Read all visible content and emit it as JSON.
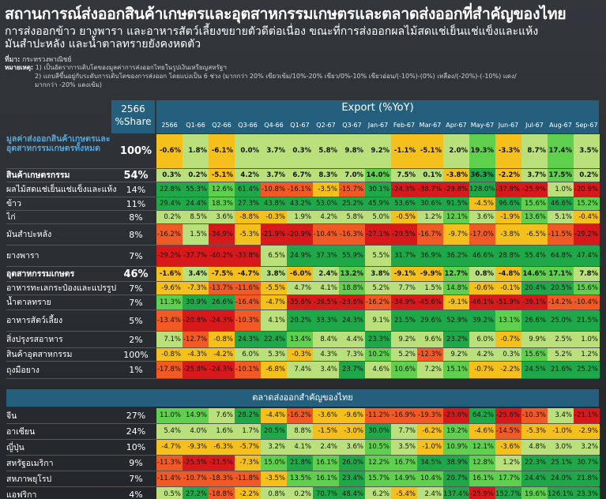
{
  "title": "สถานการณ์ส่งออกสินค้าเกษตรและอุตสาหกรรมเกษตรและตลาดส่งออกที่สำคัญของไทย",
  "subtitle_line1": "การส่งออกข้าว ยางพารา และอาหารสัตว์เลี้ยงขยายตัวดีต่อเนื่อง ขณะที่การส่งออกผลไม้สดแช่เย็นแช่แข็งและแห้ง",
  "subtitle_line2": "มันสำปะหลัง และน้ำตาลทรายยังคงหดตัว",
  "source_label": "ที่มา:",
  "source_text": "กระทรวงพาณิชย์",
  "note_label": "หมายเหตุ:",
  "notes": [
    "1) เป็นอัตราการเติบโตของมูลค่าการส่งออกไทยในรูปเงินเหรียญสหรัฐฯ",
    "2) แถบสีขึ้นอยู่กับระดับการเติบโตของการส่งออก โดยแบ่งเป็น 6 ช่วง (มากกว่า 20% เขียวเข้ม/10%-20% เขียว/0%-10% เขียวอ่อน/(-10%)-(0%) เหลือง/(-20%)-(-10%) แดง/",
    "มากกว่า -20% แดงเข้ม)"
  ],
  "share_header_year": "2566",
  "share_header_label": "%Share",
  "export_header": "Export (%YoY)",
  "columns": [
    "2566",
    "Q1-66",
    "Q2-66",
    "Q3-66",
    "Q4-66",
    "Q1-67",
    "Q2-67",
    "Q3-67",
    "Jan-67",
    "Feb-67",
    "Mar-67",
    "Apr-67",
    "May-67",
    "Jun-67",
    "Jul-67",
    "Aug-67",
    "Sep-67"
  ],
  "section2_title": "ตลาดส่งออกสำคัญของไทย",
  "colors": {
    "dark_green": "#1fa84a",
    "green": "#5fcf4e",
    "light_green": "#b9e07a",
    "yellow": "#f5bf1c",
    "red": "#f15a24",
    "dark_red": "#d7191c",
    "header_blue": "#245f7d"
  },
  "rows": [
    {
      "label": "มูลค่าส่งออกสินค้าเกษตรและอุตสาหกรรมเกษตรทั้งหมด",
      "share": "100%",
      "bold": true,
      "values": [
        "-0.6%",
        "1.8%",
        "-6.1%",
        "0.0%",
        "3.7%",
        "0.3%",
        "5.8%",
        "9.8%",
        "9.2%",
        "-1.1%",
        "-5.1%",
        "2.0%",
        "19.3%",
        "-3.3%",
        "8.7%",
        "17.4%",
        "3.5%"
      ]
    },
    {
      "label": "สินค้าเกษตรกรรม",
      "share": "54%",
      "bold": true,
      "values": [
        "0.3%",
        "0.2%",
        "-5.1%",
        "4.2%",
        "3.7%",
        "6.7%",
        "8.3%",
        "7.0%",
        "14.0%",
        "7.5%",
        "0.1%",
        "-3.8%",
        "36.3%",
        "-2.2%",
        "3.7%",
        "17.5%",
        "0.2%"
      ]
    },
    {
      "label": "ผลไม้สดแช่เย็นแช่แข็งและแห้ง",
      "share": "14%",
      "values": [
        "22.8%",
        "55.3%",
        "12.6%",
        "61.4%",
        "-10.8%",
        "-16.1%",
        "-3.5%",
        "-15.7%",
        "30.1%",
        "-24.3%",
        "-38.7%",
        "-29.8%",
        "128.0%",
        "-37.8%",
        "-25.9%",
        "1.0%",
        "-20.9%"
      ]
    },
    {
      "label": "ข้าว",
      "share": "11%",
      "values": [
        "29.4%",
        "24.4%",
        "18.3%",
        "27.3%",
        "43.8%",
        "43.2%",
        "53.0%",
        "25.2%",
        "45.9%",
        "53.6%",
        "30.6%",
        "91.5%",
        "-4.5%",
        "96.6%",
        "15.6%",
        "46.6%",
        "15.2%"
      ]
    },
    {
      "label": "ไก่",
      "share": "8%",
      "values": [
        "0.2%",
        "8.5%",
        "3.6%",
        "-8.8%",
        "-0.3%",
        "1.9%",
        "4.2%",
        "5.8%",
        "5.0%",
        "-0.5%",
        "1.2%",
        "12.1%",
        "3.6%",
        "-1.9%",
        "13.6%",
        "5.1%",
        "-0.4%"
      ]
    },
    {
      "label": "มันสำปะหลัง",
      "share": "8%",
      "values": [
        "-16.2%",
        "1.5%",
        "-34.9%",
        "-5.3%",
        "-21.9%",
        "-20.9%",
        "-10.4%",
        "-16.3%",
        "-27.1%",
        "-20.5%",
        "-16.7%",
        "-9.7%",
        "-17.0%",
        "-3.8%",
        "-6.5%",
        "-11.5%",
        "-29.2%"
      ]
    },
    {
      "label": "ยางพารา",
      "share": "7%",
      "values": [
        "-29.2%",
        "-37.7%",
        "-40.2%",
        "-33.8%",
        "6.5%",
        "24.9%",
        "37.3%",
        "55.9%",
        "5.5%",
        "31.7%",
        "36.9%",
        "36.2%",
        "46.6%",
        "28.8%",
        "55.4%",
        "64.8%",
        "47.4%"
      ]
    },
    {
      "label": "อุตสาหกรรมเกษตร",
      "share": "46%",
      "bold": true,
      "values": [
        "-1.6%",
        "3.4%",
        "-7.5%",
        "-4.7%",
        "3.8%",
        "-6.0%",
        "2.4%",
        "13.2%",
        "3.8%",
        "-9.1%",
        "-9.9%",
        "12.7%",
        "0.8%",
        "-4.8%",
        "14.6%",
        "17.1%",
        "7.8%"
      ]
    },
    {
      "label": "อาหารทะเลกระป๋องและแปรรูป",
      "share": "7%",
      "values": [
        "-9.6%",
        "-7.3%",
        "-13.7%",
        "-11.6%",
        "-5.5%",
        "4.7%",
        "4.1%",
        "18.8%",
        "5.2%",
        "7.7%",
        "1.5%",
        "14.8%",
        "-0.6%",
        "-0.1%",
        "20.4%",
        "20.5%",
        "15.6%"
      ]
    },
    {
      "label": "น้ำตาลทราย",
      "share": "7%",
      "values": [
        "11.3%",
        "30.9%",
        "26.6%",
        "-16.4%",
        "-4.7%",
        "-35.6%",
        "-39.5%",
        "-23.6%",
        "-16.2%",
        "-34.9%",
        "-45.6%",
        "-9.1%",
        "-46.1%",
        "-51.9%",
        "-39.1%",
        "-14.2%",
        "-10.4%"
      ]
    },
    {
      "label": "อาหารสัตว์เลี้ยง",
      "share": "5%",
      "values": [
        "-13.4%",
        "-20.8%",
        "-24.3%",
        "-10.3%",
        "4.1%",
        "20.2%",
        "33.3%",
        "24.3%",
        "9.1%",
        "21.5%",
        "29.6%",
        "52.9%",
        "39.2%",
        "13.1%",
        "26.6%",
        "25.0%",
        "21.5%"
      ]
    },
    {
      "label": "สิ่งปรุงรสอาหาร",
      "share": "2%",
      "values": [
        "7.1%",
        "-12.7%",
        "-0.8%",
        "24.3%",
        "22.4%",
        "13.4%",
        "8.4%",
        "4.4%",
        "23.3%",
        "9.2%",
        "9.6%",
        "23.2%",
        "6.0%",
        "-0.7%",
        "9.9%",
        "2.5%",
        "1.0%"
      ]
    },
    {
      "label": "สินค้าอุตสาหกรรม",
      "share": "100%",
      "values": [
        "-0.8%",
        "-4.3%",
        "-4.2%",
        "6.0%",
        "5.3%",
        "-0.3%",
        "4.3%",
        "7.3%",
        "10.2%",
        "5.2%",
        "-12.3%",
        "9.2%",
        "4.2%",
        "0.3%",
        "15.6%",
        "5.2%",
        "1.2%"
      ]
    },
    {
      "label": "ถุงมือยาง",
      "share": "1%",
      "values": [
        "-17.8%",
        "-25.8%",
        "-24.3%",
        "-10.1%",
        "-6.8%",
        "7.4%",
        "3.4%",
        "23.7%",
        "4.6%",
        "10.6%",
        "7.2%",
        "15.1%",
        "-0.7%",
        "-2.2%",
        "24.5%",
        "21.6%",
        "25.2%"
      ]
    }
  ],
  "market_rows": [
    {
      "label": "จีน",
      "share": "27%",
      "values": [
        "11.0%",
        "14.9%",
        "7.6%",
        "28.2%",
        "-4.4%",
        "-16.2%",
        "-3.6%",
        "-9.6%",
        "-11.2%",
        "-16.9%",
        "-19.3%",
        "-23.6%",
        "64.2%",
        "-25.6%",
        "-10.3%",
        "3.4%",
        "-21.1%"
      ]
    },
    {
      "label": "อาเซียน",
      "share": "24%",
      "values": [
        "5.4%",
        "4.0%",
        "1.6%",
        "1.7%",
        "20.5%",
        "8.8%",
        "-1.5%",
        "-3.0%",
        "30.0%",
        "7.7%",
        "-6.2%",
        "19.2%",
        "-4.6%",
        "-14.5%",
        "-5.3%",
        "-1.0%",
        "-2.9%"
      ]
    },
    {
      "label": "ญี่ปุ่น",
      "share": "10%",
      "values": [
        "-4.7%",
        "-9.3%",
        "-6.3%",
        "-5.7%",
        "3.2%",
        "4.1%",
        "2.4%",
        "3.6%",
        "10.5%",
        "3.5%",
        "-1.0%",
        "10.9%",
        "12.1%",
        "-3.6%",
        "4.8%",
        "3.0%",
        "3.2%"
      ]
    },
    {
      "label": "สหรัฐอเมริกา",
      "share": "9%",
      "values": [
        "-11.3%",
        "-25.5%",
        "-21.5%",
        "-7.3%",
        "15.0%",
        "21.8%",
        "16.1%",
        "26.0%",
        "12.2%",
        "16.7%",
        "34.5%",
        "38.9%",
        "12.8%",
        "1.2%",
        "22.3%",
        "25.1%",
        "30.7%"
      ]
    },
    {
      "label": "สหภาพยุโรป",
      "share": "7%",
      "values": [
        "-11.4%",
        "-10.7%",
        "-18.3%",
        "-11.8%",
        "-3.5%",
        "13.5%",
        "16.1%",
        "23.4%",
        "15.7%",
        "14.9%",
        "10.4%",
        "20.7%",
        "16.1%",
        "17.7%",
        "24.4%",
        "24.0%",
        "21.8%"
      ]
    },
    {
      "label": "แอฟริกา",
      "share": "4%",
      "values": [
        "0.5%",
        "27.2%",
        "-18.8%",
        "-2.2%",
        "0.8%",
        "0.2%",
        "70.7%",
        "48.4%",
        "6.2%",
        "-5.4%",
        "2.4%",
        "137.4%",
        "-25.9%",
        "152.7%",
        "19.6%",
        "126.1%",
        "23.3%"
      ]
    }
  ]
}
